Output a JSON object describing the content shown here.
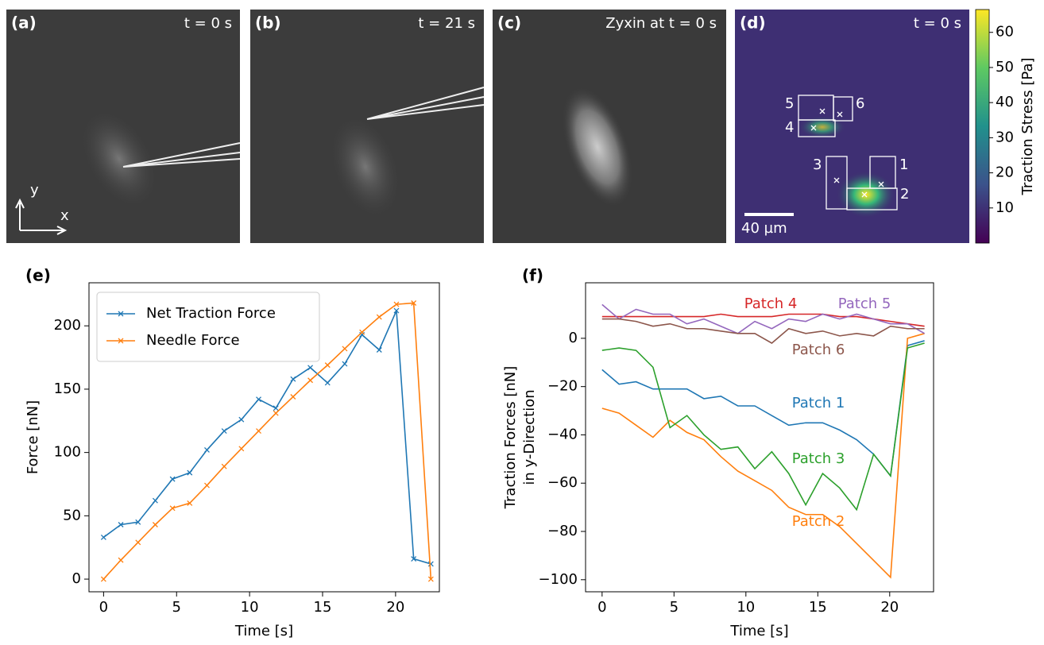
{
  "panels": [
    {
      "label": "(a)",
      "caption": "t = 0 s",
      "axis_x": "x",
      "axis_y": "y"
    },
    {
      "label": "(b)",
      "caption": "t = 21 s"
    },
    {
      "label": "(c)",
      "caption": "Zyxin at t = 0 s"
    },
    {
      "label": "(d)",
      "caption": "t = 0 s",
      "scale_bar": "40 µm",
      "patch_labels": [
        "1",
        "2",
        "3",
        "4",
        "5",
        "6"
      ]
    }
  ],
  "colorbar": {
    "label": "Traction Stress [Pa]",
    "lim": [
      0,
      66.5
    ],
    "ticks": [
      10,
      20,
      30,
      40,
      50,
      60
    ]
  },
  "chart_data": [
    {
      "type": "line",
      "label": "(e)",
      "xlabel": "Time [s]",
      "ylabel": "Force [nN]",
      "x": [
        0,
        1.18,
        2.36,
        3.54,
        4.72,
        5.9,
        7.08,
        8.26,
        9.44,
        10.62,
        11.8,
        12.98,
        14.16,
        15.34,
        16.52,
        17.7,
        18.88,
        20.06,
        21.24,
        22.42
      ],
      "xlim": [
        -1,
        23
      ],
      "xticks": [
        0,
        5,
        10,
        15,
        20
      ],
      "ylim": [
        -10,
        234
      ],
      "yticks": [
        0,
        50,
        100,
        150,
        200
      ],
      "legend": "upper left",
      "marker": "x",
      "series": [
        {
          "name": "Net Traction Force",
          "color": "#1f77b4",
          "values": [
            33,
            43,
            45,
            62,
            79,
            84,
            102,
            117,
            126,
            142,
            135,
            158,
            167,
            155,
            170,
            193,
            181,
            212,
            16,
            12
          ]
        },
        {
          "name": "Needle Force",
          "color": "#ff7f0e",
          "values": [
            0,
            15,
            29,
            43,
            56,
            60,
            74,
            89,
            103,
            117,
            131,
            144,
            157,
            169,
            182,
            195,
            207,
            217,
            218,
            0
          ]
        }
      ]
    },
    {
      "type": "line",
      "label": "(f)",
      "xlabel": "Time [s]",
      "ylabel": [
        "Traction Forces [nN]",
        "in y-Direction"
      ],
      "x": [
        0,
        1.18,
        2.36,
        3.54,
        4.72,
        5.9,
        7.08,
        8.26,
        9.44,
        10.62,
        11.8,
        12.98,
        14.16,
        15.34,
        16.52,
        17.7,
        18.88,
        20.06,
        21.24,
        22.42
      ],
      "xlim": [
        -1.15,
        23.05
      ],
      "xticks": [
        0,
        5,
        10,
        15,
        20
      ],
      "ylim": [
        -105,
        23
      ],
      "yticks": [
        0,
        {
          "value": -20,
          "label": "−20"
        },
        {
          "value": -40,
          "label": "−40"
        },
        {
          "value": -60,
          "label": "−60"
        },
        {
          "value": -80,
          "label": "−80"
        },
        {
          "value": -100,
          "label": "−100"
        }
      ],
      "series": [
        {
          "name": "Patch 1",
          "color": "#1f77b4",
          "values": [
            -13,
            -19,
            -18,
            -21,
            -21,
            -21,
            -25,
            -24,
            -28,
            -28,
            -32,
            -36,
            -35,
            -35,
            -38,
            -42,
            -48,
            -57,
            -3,
            -1
          ]
        },
        {
          "name": "Patch 2",
          "color": "#ff7f0e",
          "values": [
            -29,
            -31,
            -36,
            -41,
            -34,
            -39,
            -42,
            -49,
            -55,
            -59,
            -63,
            -70,
            -73,
            -73,
            -78,
            -85,
            -92,
            -99,
            0,
            2
          ]
        },
        {
          "name": "Patch 3",
          "color": "#2ca02c",
          "values": [
            -5,
            -4,
            -5,
            -12,
            -37,
            -32,
            -40,
            -46,
            -45,
            -54,
            -47,
            -56,
            -69,
            -56,
            -62,
            -71,
            -48,
            -57,
            -4,
            -2
          ]
        },
        {
          "name": "Patch 4",
          "color": "#d62728",
          "values": [
            9,
            9,
            9,
            9,
            9,
            9,
            9,
            10,
            9,
            9,
            9,
            10,
            10,
            10,
            9,
            9,
            8,
            7,
            6,
            5
          ]
        },
        {
          "name": "Patch 5",
          "color": "#9467bd",
          "values": [
            14,
            8,
            12,
            10,
            10,
            6,
            8,
            5,
            2,
            7,
            4,
            8,
            7,
            10,
            8,
            10,
            8,
            6,
            6,
            2
          ]
        },
        {
          "name": "Patch 6",
          "color": "#8c564b",
          "values": [
            8,
            8,
            7,
            5,
            6,
            4,
            4,
            3,
            2,
            2,
            -2,
            4,
            2,
            3,
            1,
            2,
            1,
            5,
            4,
            4
          ]
        }
      ]
    }
  ]
}
